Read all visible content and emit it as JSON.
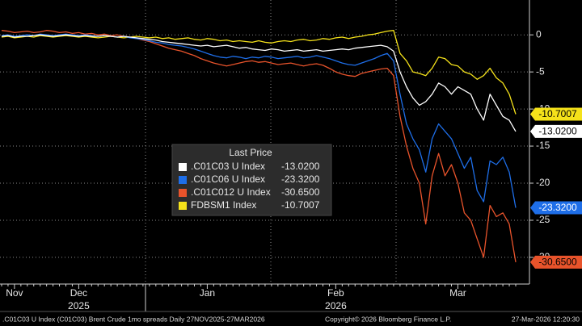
{
  "chart_data": {
    "type": "line",
    "categories": [
      null,
      null,
      "Nov",
      null,
      null,
      null,
      null,
      null,
      null,
      null,
      null,
      null,
      "Dec",
      null,
      null,
      null,
      null,
      null,
      null,
      null,
      null,
      null,
      null,
      null,
      null,
      null,
      null,
      null,
      null,
      null,
      null,
      null,
      "Jan",
      null,
      null,
      null,
      null,
      null,
      null,
      null,
      null,
      null,
      null,
      null,
      null,
      null,
      null,
      null,
      null,
      null,
      null,
      null,
      "Feb",
      null,
      null,
      null,
      null,
      null,
      null,
      null,
      null,
      null,
      null,
      null,
      null,
      null,
      null,
      null,
      null,
      null,
      null,
      "Mar",
      null,
      null,
      null,
      null,
      null,
      null,
      null,
      null,
      null
    ],
    "year_labels": [
      {
        "label": "2025",
        "under": "Dec"
      },
      {
        "label": "2026",
        "under": "Feb"
      }
    ],
    "ylim": [
      -33.6,
      4.7
    ],
    "yticks": [
      0,
      -5,
      -10,
      -15,
      -20,
      -25,
      -30
    ],
    "grid": true,
    "legend_title": "Last Price",
    "series": [
      {
        "name": ".C01C03 U Index",
        "color": "#ffffff",
        "last_label": "-13.0200",
        "values": [
          -0.2,
          -0.1,
          -0.3,
          -0.2,
          -0.2,
          -0.1,
          0.0,
          -0.1,
          -0.2,
          -0.1,
          0.0,
          -0.1,
          -0.2,
          -0.1,
          -0.2,
          -0.2,
          -0.1,
          -0.2,
          -0.3,
          -0.2,
          -0.3,
          -0.4,
          -0.5,
          -0.6,
          -0.7,
          -0.9,
          -1.0,
          -1.1,
          -1.2,
          -1.3,
          -1.4,
          -1.5,
          -1.4,
          -1.6,
          -1.5,
          -1.4,
          -1.6,
          -1.8,
          -1.7,
          -1.9,
          -2.0,
          -2.1,
          -1.9,
          -2.0,
          -2.2,
          -2.1,
          -2.0,
          -2.2,
          -2.1,
          -2.0,
          -2.2,
          -2.1,
          -2.0,
          -1.9,
          -2.0,
          -1.8,
          -1.7,
          -1.6,
          -1.5,
          -1.4,
          -1.6,
          -2.2,
          -5.0,
          -7.0,
          -8.5,
          -9.5,
          -9.0,
          -8.0,
          -6.5,
          -7.0,
          -8.0,
          -7.0,
          -7.5,
          -8.0,
          -10.0,
          -11.5,
          -8.0,
          -9.5,
          -11.0,
          -11.5,
          -13.02
        ]
      },
      {
        "name": ".C01C06 U Index",
        "color": "#1e6ee8",
        "last_label": "-23.3200",
        "values": [
          -0.1,
          0.0,
          -0.2,
          -0.1,
          0.0,
          -0.1,
          0.1,
          0.0,
          -0.1,
          0.0,
          0.1,
          0.0,
          -0.1,
          0.0,
          -0.1,
          -0.2,
          -0.1,
          -0.2,
          -0.3,
          -0.2,
          -0.4,
          -0.5,
          -0.6,
          -0.8,
          -1.0,
          -1.1,
          -1.3,
          -1.4,
          -1.5,
          -1.7,
          -1.9,
          -2.2,
          -2.5,
          -2.8,
          -3.0,
          -3.1,
          -2.9,
          -3.0,
          -3.2,
          -3.0,
          -3.1,
          -2.9,
          -3.0,
          -3.2,
          -3.1,
          -3.0,
          -2.9,
          -3.1,
          -3.0,
          -2.8,
          -3.0,
          -3.2,
          -3.5,
          -3.8,
          -4.0,
          -4.1,
          -3.8,
          -3.5,
          -3.2,
          -2.8,
          -2.5,
          -3.5,
          -8.0,
          -12.0,
          -14.0,
          -15.5,
          -18.5,
          -14.0,
          -12.0,
          -13.0,
          -14.0,
          -16.0,
          -18.0,
          -16.5,
          -21.0,
          -22.5,
          -17.0,
          -17.5,
          -16.5,
          -18.5,
          -23.32
        ]
      },
      {
        "name": ".C01C012 U Index",
        "color": "#e8532b",
        "last_label": "-30.6500",
        "values": [
          0.6,
          0.5,
          0.3,
          0.4,
          0.5,
          0.3,
          0.4,
          0.6,
          0.5,
          0.3,
          0.4,
          0.2,
          0.3,
          0.1,
          0.2,
          0.0,
          0.1,
          -0.1,
          0.0,
          -0.2,
          -0.3,
          -0.5,
          -0.7,
          -0.9,
          -1.2,
          -1.5,
          -1.8,
          -2.0,
          -2.2,
          -2.5,
          -2.8,
          -3.2,
          -3.5,
          -3.8,
          -4.0,
          -4.2,
          -4.0,
          -3.8,
          -3.6,
          -3.5,
          -3.7,
          -3.6,
          -3.8,
          -4.0,
          -3.9,
          -3.8,
          -4.0,
          -4.2,
          -4.0,
          -3.9,
          -4.1,
          -4.5,
          -5.0,
          -5.3,
          -5.5,
          -5.6,
          -5.2,
          -5.0,
          -4.8,
          -4.6,
          -4.5,
          -5.5,
          -11.0,
          -15.0,
          -18.0,
          -20.0,
          -25.5,
          -19.0,
          -16.0,
          -19.0,
          -17.5,
          -20.0,
          -24.0,
          -25.0,
          -27.5,
          -30.0,
          -23.0,
          -24.5,
          -24.0,
          -25.5,
          -30.65
        ]
      },
      {
        "name": "FDBSM1 Index",
        "color": "#f5e21a",
        "last_label": "-10.7007",
        "values": [
          -0.3,
          -0.2,
          -0.4,
          -0.3,
          -0.2,
          -0.3,
          -0.1,
          -0.2,
          -0.3,
          -0.2,
          -0.1,
          -0.2,
          -0.3,
          -0.2,
          -0.3,
          -0.4,
          -0.3,
          -0.2,
          -0.3,
          -0.4,
          -0.3,
          -0.2,
          -0.3,
          -0.4,
          -0.3,
          -0.5,
          -0.4,
          -0.6,
          -0.5,
          -0.4,
          -0.6,
          -0.7,
          -0.5,
          -0.6,
          -0.8,
          -0.7,
          -0.9,
          -0.8,
          -0.9,
          -1.0,
          -0.8,
          -1.0,
          -1.1,
          -0.9,
          -0.8,
          -0.9,
          -0.7,
          -0.6,
          -0.8,
          -0.7,
          -0.5,
          -0.6,
          -0.4,
          -0.3,
          -0.5,
          -0.3,
          -0.2,
          0.0,
          0.1,
          0.3,
          0.5,
          0.6,
          -2.5,
          -3.5,
          -5.0,
          -5.2,
          -5.5,
          -4.5,
          -3.0,
          -3.2,
          -4.0,
          -4.2,
          -5.0,
          -5.3,
          -6.0,
          -5.5,
          -4.5,
          -5.8,
          -6.5,
          -8.0,
          -10.7007
        ]
      }
    ]
  },
  "footer": {
    "description": ".C01C03 U Index (C01C03) Brent Crude 1mo spreads Daily 27NOV2025-27MAR2026",
    "copyright": "Copyright© 2026 Bloomberg Finance L.P.",
    "timestamp": "27-Mar-2026 12:20:30"
  }
}
